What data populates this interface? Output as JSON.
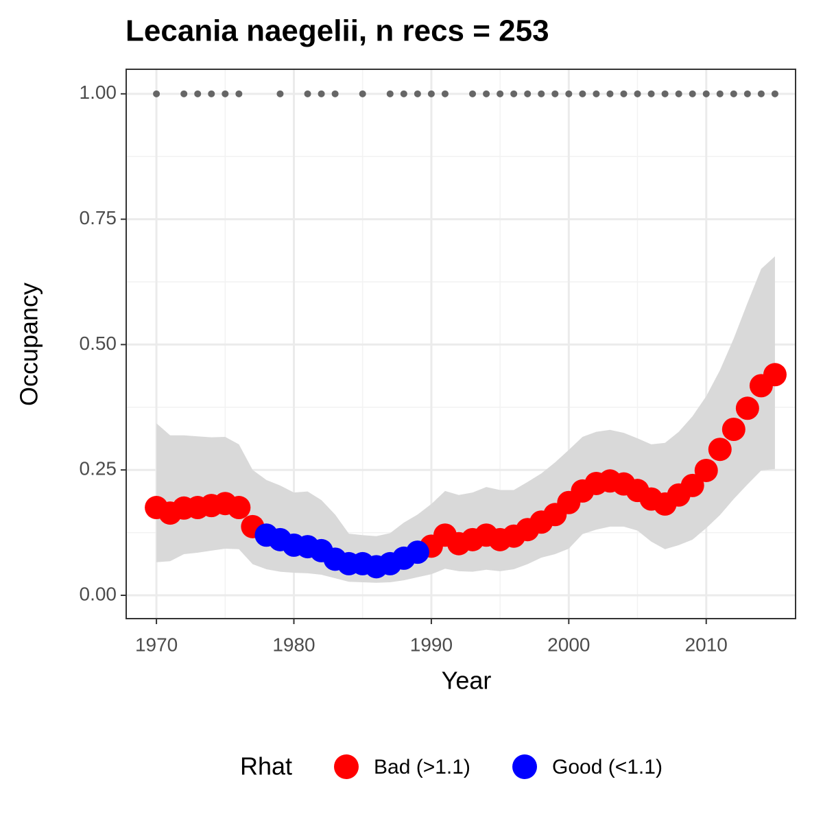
{
  "chart_data": {
    "type": "scatter",
    "title": "Lecania naegelii, n recs = 253",
    "x_label": "Year",
    "y_label": "Occupancy",
    "legend_title": "Rhat",
    "legend_position": "bottom",
    "grid": true,
    "minor_grid": true,
    "x": [
      1970,
      1971,
      1972,
      1973,
      1974,
      1975,
      1976,
      1977,
      1978,
      1979,
      1980,
      1981,
      1982,
      1983,
      1984,
      1985,
      1986,
      1987,
      1988,
      1989,
      1990,
      1991,
      1992,
      1993,
      1994,
      1995,
      1996,
      1997,
      1998,
      1999,
      2000,
      2001,
      2002,
      2003,
      2004,
      2005,
      2006,
      2007,
      2008,
      2009,
      2010,
      2011,
      2012,
      2013,
      2014,
      2015
    ],
    "series": [
      {
        "name": "Bad (>1.1)",
        "color": "#ff0000",
        "values": [
          0.175,
          0.164,
          0.174,
          0.175,
          0.179,
          0.183,
          0.175,
          0.137,
          null,
          null,
          null,
          null,
          null,
          null,
          null,
          null,
          null,
          null,
          null,
          null,
          0.098,
          0.12,
          0.103,
          0.111,
          0.12,
          0.111,
          0.118,
          0.131,
          0.146,
          0.161,
          0.185,
          0.208,
          0.223,
          0.228,
          0.222,
          0.209,
          0.192,
          0.182,
          0.2,
          0.219,
          0.249,
          0.291,
          0.331,
          0.373,
          0.418,
          0.44
        ]
      },
      {
        "name": "Good (<1.1)",
        "color": "#0000ff",
        "values": [
          null,
          null,
          null,
          null,
          null,
          null,
          null,
          null,
          0.12,
          0.111,
          0.1,
          0.097,
          0.089,
          0.072,
          0.063,
          0.063,
          0.057,
          0.063,
          0.074,
          0.086,
          null,
          null,
          null,
          null,
          null,
          null,
          null,
          null,
          null,
          null,
          null,
          null,
          null,
          null,
          null,
          null,
          null,
          null,
          null,
          null,
          null,
          null,
          null,
          null,
          null,
          null
        ]
      }
    ],
    "band": {
      "color": "#d9d9d9",
      "upper": [
        0.343,
        0.319,
        0.319,
        0.317,
        0.315,
        0.316,
        0.301,
        0.25,
        0.23,
        0.219,
        0.205,
        0.207,
        0.19,
        0.161,
        0.123,
        0.12,
        0.118,
        0.124,
        0.145,
        0.161,
        0.182,
        0.208,
        0.2,
        0.205,
        0.216,
        0.21,
        0.21,
        0.226,
        0.243,
        0.265,
        0.29,
        0.316,
        0.326,
        0.33,
        0.324,
        0.313,
        0.301,
        0.304,
        0.326,
        0.357,
        0.397,
        0.449,
        0.512,
        0.583,
        0.651,
        0.676
      ],
      "lower": [
        0.066,
        0.068,
        0.082,
        0.085,
        0.089,
        0.093,
        0.092,
        0.062,
        0.052,
        0.047,
        0.045,
        0.044,
        0.041,
        0.034,
        0.027,
        0.026,
        0.025,
        0.026,
        0.03,
        0.036,
        0.042,
        0.053,
        0.048,
        0.047,
        0.051,
        0.048,
        0.052,
        0.062,
        0.075,
        0.082,
        0.093,
        0.122,
        0.131,
        0.137,
        0.137,
        0.129,
        0.107,
        0.092,
        0.1,
        0.111,
        0.134,
        0.16,
        0.192,
        0.221,
        0.249,
        0.252
      ]
    },
    "records": {
      "color": "#666666",
      "x": [
        1970,
        1972,
        1973,
        1974,
        1975,
        1976,
        1979,
        1981,
        1982,
        1983,
        1985,
        1987,
        1988,
        1989,
        1990,
        1991,
        1993,
        1994,
        1995,
        1996,
        1997,
        1998,
        1999,
        2000,
        2001,
        2002,
        2003,
        2004,
        2005,
        2006,
        2007,
        2008,
        2009,
        2010,
        2011,
        2012,
        2013,
        2014,
        2015
      ],
      "values": [
        1,
        1,
        1,
        1,
        1,
        1,
        1,
        1,
        1,
        1,
        1,
        1,
        1,
        1,
        1,
        1,
        1,
        1,
        1,
        1,
        1,
        1,
        1,
        1,
        1,
        1,
        1,
        1,
        1,
        1,
        1,
        1,
        1,
        1,
        1,
        1,
        1,
        1,
        1
      ]
    },
    "xlim": [
      1967.8,
      2016.5
    ],
    "xticks": [
      1970,
      1980,
      1990,
      2000,
      2010
    ],
    "ylim": [
      -0.0465,
      1.049
    ],
    "yticks": [
      {
        "value": 0,
        "label": "0.00"
      },
      {
        "value": 0.25,
        "label": "0.25"
      },
      {
        "value": 0.5,
        "label": "0.50"
      },
      {
        "value": 0.75,
        "label": "0.75"
      },
      {
        "value": 1,
        "label": "1.00"
      }
    ]
  }
}
